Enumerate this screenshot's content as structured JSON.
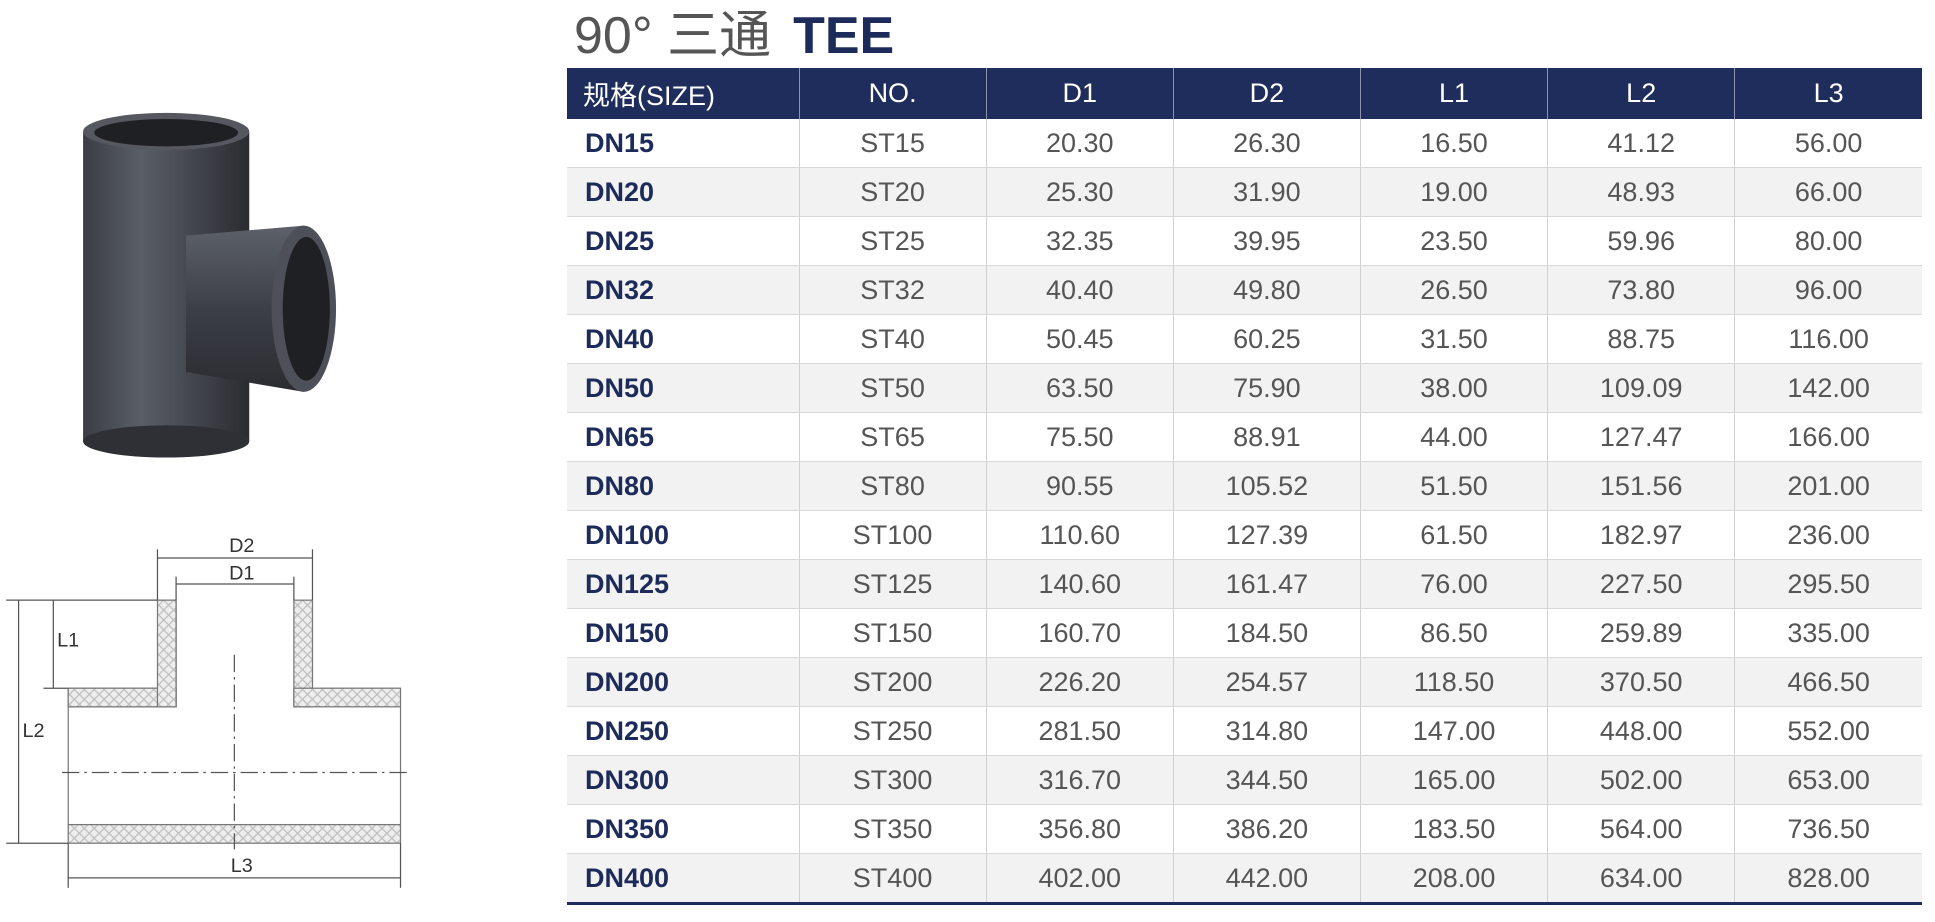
{
  "title": "90° 三通",
  "title_en": "TEE",
  "diagram": {
    "labels": [
      "D2",
      "D1",
      "L1",
      "L2",
      "L3"
    ]
  },
  "table": {
    "header": [
      "规格(SIZE)",
      "NO.",
      "D1",
      "D2",
      "L1",
      "L2",
      "L3"
    ],
    "rows": [
      [
        "DN15",
        "ST15",
        "20.30",
        "26.30",
        "16.50",
        "41.12",
        "56.00"
      ],
      [
        "DN20",
        "ST20",
        "25.30",
        "31.90",
        "19.00",
        "48.93",
        "66.00"
      ],
      [
        "DN25",
        "ST25",
        "32.35",
        "39.95",
        "23.50",
        "59.96",
        "80.00"
      ],
      [
        "DN32",
        "ST32",
        "40.40",
        "49.80",
        "26.50",
        "73.80",
        "96.00"
      ],
      [
        "DN40",
        "ST40",
        "50.45",
        "60.25",
        "31.50",
        "88.75",
        "116.00"
      ],
      [
        "DN50",
        "ST50",
        "63.50",
        "75.90",
        "38.00",
        "109.09",
        "142.00"
      ],
      [
        "DN65",
        "ST65",
        "75.50",
        "88.91",
        "44.00",
        "127.47",
        "166.00"
      ],
      [
        "DN80",
        "ST80",
        "90.55",
        "105.52",
        "51.50",
        "151.56",
        "201.00"
      ],
      [
        "DN100",
        "ST100",
        "110.60",
        "127.39",
        "61.50",
        "182.97",
        "236.00"
      ],
      [
        "DN125",
        "ST125",
        "140.60",
        "161.47",
        "76.00",
        "227.50",
        "295.50"
      ],
      [
        "DN150",
        "ST150",
        "160.70",
        "184.50",
        "86.50",
        "259.89",
        "335.00"
      ],
      [
        "DN200",
        "ST200",
        "226.20",
        "254.57",
        "118.50",
        "370.50",
        "466.50"
      ],
      [
        "DN250",
        "ST250",
        "281.50",
        "314.80",
        "147.00",
        "448.00",
        "552.00"
      ],
      [
        "DN300",
        "ST300",
        "316.70",
        "344.50",
        "165.00",
        "502.00",
        "653.00"
      ],
      [
        "DN350",
        "ST350",
        "356.80",
        "386.20",
        "183.50",
        "564.00",
        "736.50"
      ],
      [
        "DN400",
        "ST400",
        "402.00",
        "442.00",
        "208.00",
        "634.00",
        "828.00"
      ]
    ]
  }
}
